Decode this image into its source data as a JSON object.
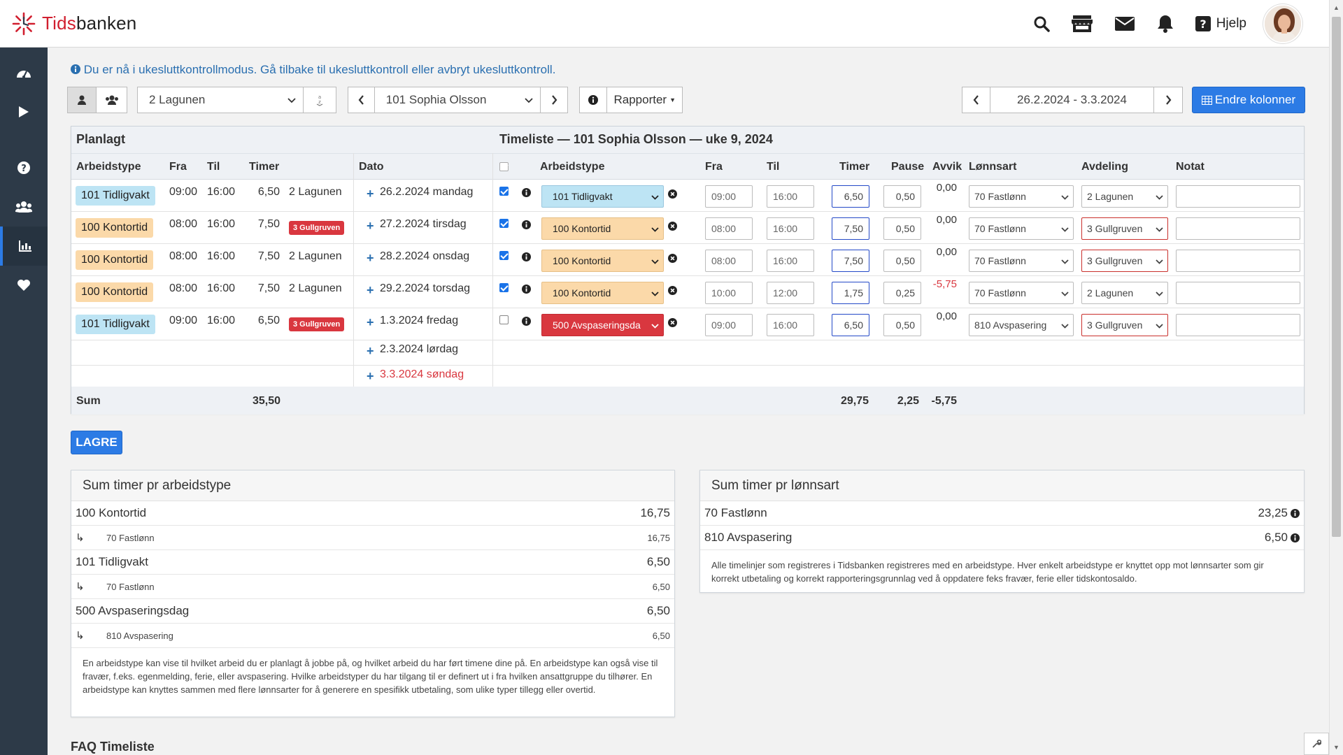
{
  "app": {
    "logo_part1": "Tids",
    "logo_part2": "banken",
    "help_label": "Hjelp"
  },
  "notice": {
    "text": "Du er nå i ukesluttkontrollmodus.",
    "back_link": "Gå tilbake til ukesluttkontroll",
    "or": "eller",
    "cancel_link": "avbryt ukesluttkontroll",
    "end": "."
  },
  "toolbar": {
    "department": "2 Lagunen",
    "employee": "101 Sophia Olsson",
    "reports_label": "Rapporter",
    "date_range": "26.2.2024 - 3.3.2024",
    "change_columns": "Endre kolonner"
  },
  "planned": {
    "title": "Planlagt",
    "headers": [
      "Arbeidstype",
      "Fra",
      "Til",
      "Timer"
    ],
    "rows": [
      {
        "type": "101 Tidligvakt",
        "color": "blue",
        "from": "09:00",
        "to": "16:00",
        "hours": "6,50",
        "dept": "2 Lagunen",
        "dept_badge": false
      },
      {
        "type": "100 Kontortid",
        "color": "orange",
        "from": "08:00",
        "to": "16:00",
        "hours": "7,50",
        "dept": "3 Gullgruven",
        "dept_badge": true
      },
      {
        "type": "100 Kontortid",
        "color": "orange",
        "from": "08:00",
        "to": "16:00",
        "hours": "7,50",
        "dept": "2 Lagunen",
        "dept_badge": false
      },
      {
        "type": "100 Kontortid",
        "color": "orange",
        "from": "08:00",
        "to": "16:00",
        "hours": "7,50",
        "dept": "2 Lagunen",
        "dept_badge": false
      },
      {
        "type": "101 Tidligvakt",
        "color": "blue",
        "from": "09:00",
        "to": "16:00",
        "hours": "6,50",
        "dept": "3 Gullgruven",
        "dept_badge": true
      }
    ],
    "sum_label": "Sum",
    "sum_hours": "35,50"
  },
  "dates": {
    "header": "Dato",
    "items": [
      "26.2.2024 mandag",
      "27.2.2024 tirsdag",
      "28.2.2024 onsdag",
      "29.2.2024 torsdag",
      "1.3.2024 fredag",
      "2.3.2024 lørdag",
      "3.3.2024 søndag"
    ]
  },
  "timesheet": {
    "title": "Timeliste — 101 Sophia Olsson — uke 9, 2024",
    "headers": {
      "arbeidstype": "Arbeidstype",
      "fra": "Fra",
      "til": "Til",
      "timer": "Timer",
      "pause": "Pause",
      "avvik": "Avvik",
      "lonnsart": "Lønnsart",
      "avdeling": "Avdeling",
      "notat": "Notat"
    },
    "rows": [
      {
        "checked": true,
        "type": "101 Tidligvakt",
        "color": "blue",
        "from": "09:00",
        "to": "16:00",
        "hours": "6,50",
        "pause": "0,50",
        "deviation": "0,00",
        "wage": "70 Fastlønn",
        "dept": "2 Lagunen",
        "dept_red": false
      },
      {
        "checked": true,
        "type": "100 Kontortid",
        "color": "orange",
        "from": "08:00",
        "to": "16:00",
        "hours": "7,50",
        "pause": "0,50",
        "deviation": "0,00",
        "wage": "70 Fastlønn",
        "dept": "3 Gullgruven",
        "dept_red": true
      },
      {
        "checked": true,
        "type": "100 Kontortid",
        "color": "orange",
        "from": "08:00",
        "to": "16:00",
        "hours": "7,50",
        "pause": "0,50",
        "deviation": "0,00",
        "wage": "70 Fastlønn",
        "dept": "3 Gullgruven",
        "dept_red": true
      },
      {
        "checked": true,
        "type": "100 Kontortid",
        "color": "orange",
        "from": "10:00",
        "to": "12:00",
        "hours": "1,75",
        "pause": "0,25",
        "deviation": "-5,75",
        "wage": "70 Fastlønn",
        "dept": "2 Lagunen",
        "dept_red": false
      },
      {
        "checked": false,
        "type": "500 Avspaseringsda",
        "color": "redfill",
        "from": "09:00",
        "to": "16:00",
        "hours": "6,50",
        "pause": "0,50",
        "deviation": "0,00",
        "wage": "810 Avspasering",
        "dept": "3 Gullgruven",
        "dept_red": true
      }
    ],
    "sum_hours": "29,75",
    "sum_pause": "2,25",
    "sum_deviation": "-5,75"
  },
  "save_label": "LAGRE",
  "by_worktype": {
    "title": "Sum timer pr arbeidstype",
    "items": [
      {
        "label": "100 Kontortid",
        "value": "16,75",
        "sub_label": "70 Fastlønn",
        "sub_value": "16,75"
      },
      {
        "label": "101 Tidligvakt",
        "value": "6,50",
        "sub_label": "70 Fastlønn",
        "sub_value": "6,50"
      },
      {
        "label": "500 Avspaseringsdag",
        "value": "6,50",
        "sub_label": "810 Avspasering",
        "sub_value": "6,50"
      }
    ],
    "note": "En arbeidstype kan vise til hvilket arbeid du er planlagt å jobbe på, og hvilket arbeid du har ført timene dine på. En arbeidstype kan også vise til fravær, f.eks. egenmelding, ferie, eller avspasering. Hvilke arbeidstyper du har tilgang til er definert ut i fra hvilken ansattgruppe du tilhører. En arbeidstype kan knyttes sammen med flere lønnsarter for å generere en spesifikk utbetaling, som ulike typer tillegg eller overtid."
  },
  "by_wagetype": {
    "title": "Sum timer pr lønnsart",
    "items": [
      {
        "label": "70 Fastlønn",
        "value": "23,25"
      },
      {
        "label": "810 Avspasering",
        "value": "6,50"
      }
    ],
    "note": "Alle timelinjer som registreres i Tidsbanken registreres med en arbeidstype. Hver enkelt arbeidstype er knyttet opp mot lønnsarter som gir korrekt utbetaling og korrekt rapporteringsgrunnlag ved å oppdatere feks fravær, ferie eller tidskontosaldo."
  },
  "faq_title": "FAQ Timeliste"
}
